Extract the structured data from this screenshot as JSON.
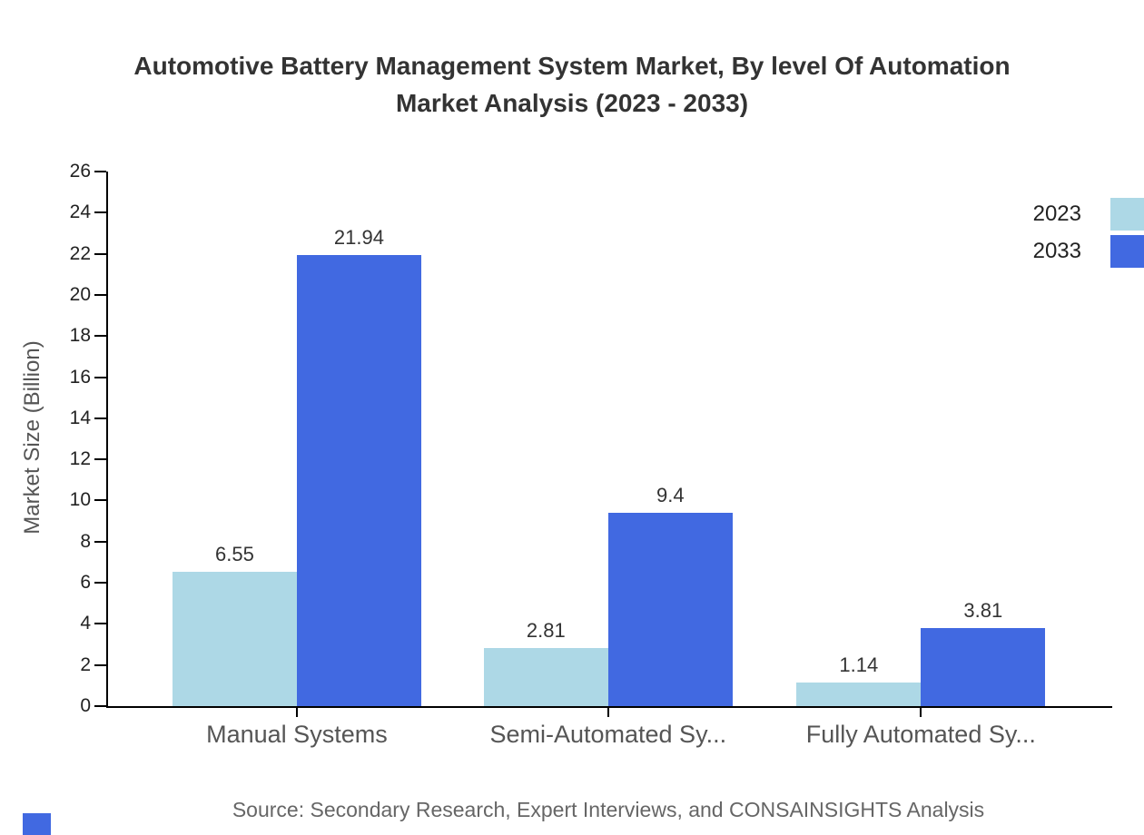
{
  "title": {
    "full": "Automotive Battery Management System Market, By level Of Automation Market Analysis (2023 - 2033)",
    "line1": "Automotive Battery Management System Market, By level Of Automation",
    "line2": "Market Analysis (2023 - 2033)"
  },
  "chart_data": {
    "type": "bar",
    "title": "Automotive Battery Management System Market, By level Of Automation Market Analysis (2023 - 2033)",
    "categories": [
      "Manual Systems",
      "Semi-Automated Sy...",
      "Fully Automated Sy..."
    ],
    "series": [
      {
        "name": "2023",
        "color": "#ADD8E6",
        "values": [
          6.55,
          2.81,
          1.14
        ]
      },
      {
        "name": "2033",
        "color": "#4169E1",
        "values": [
          21.94,
          9.4,
          3.81
        ]
      }
    ],
    "xlabel": "",
    "ylabel": "Market Size (Billion)",
    "ylim": [
      0,
      26
    ],
    "yticks": [
      0,
      2,
      4,
      6,
      8,
      10,
      12,
      14,
      16,
      18,
      20,
      22,
      24,
      26
    ],
    "grid": false,
    "legend_position": "top-right",
    "value_labels": true
  },
  "legend": {
    "items": [
      {
        "label": "2023",
        "color": "#ADD8E6"
      },
      {
        "label": "2033",
        "color": "#4169E1"
      }
    ]
  },
  "footer": {
    "source": "Source: Secondary Research, Expert Interviews, and CONSAINSIGHTS Analysis"
  },
  "colors": {
    "series_2023": "#ADD8E6",
    "series_2033": "#4169E1",
    "axis": "#000000",
    "title_text": "#333333",
    "category_text": "#555555",
    "tick_text": "#222222",
    "value_text": "#333333",
    "source_text": "#666666",
    "brand_mark": "#4169E1"
  }
}
